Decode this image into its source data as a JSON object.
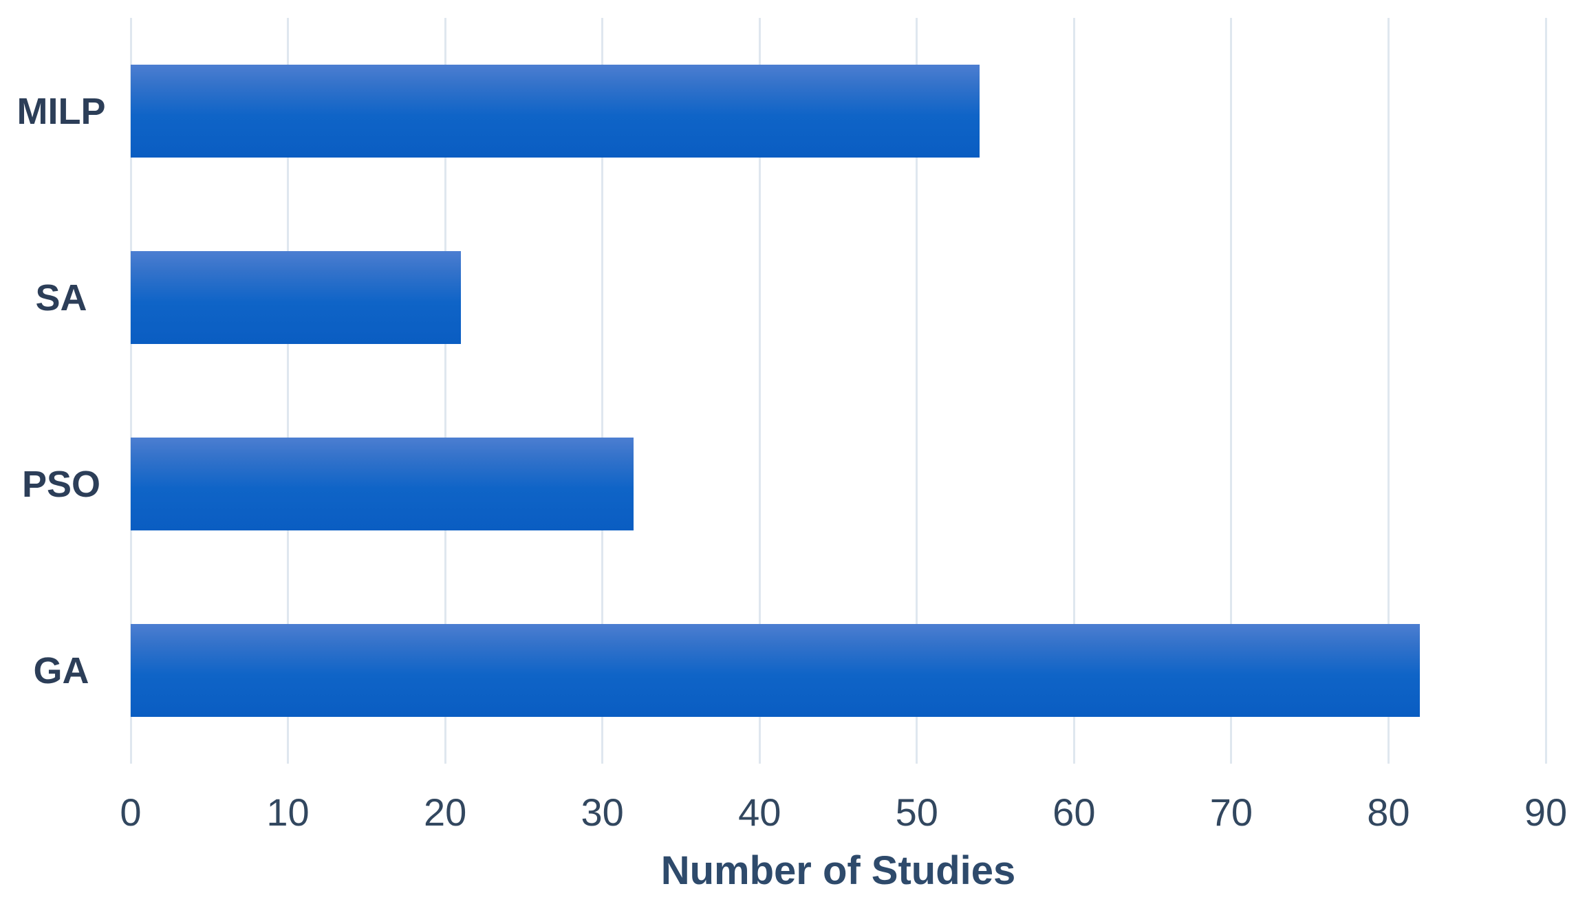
{
  "chart_data": {
    "type": "bar",
    "orientation": "horizontal",
    "categories": [
      "MILP",
      "SA",
      "PSO",
      "GA"
    ],
    "values": [
      54,
      21,
      32,
      82
    ],
    "xlabel": "Number of Studies",
    "ylabel": "",
    "xlim": [
      0,
      90
    ],
    "xticks": [
      0,
      10,
      20,
      30,
      40,
      50,
      60,
      70,
      80,
      90
    ],
    "grid": "vertical-gridlines-on",
    "legend": "none",
    "colors": {
      "bar_gradient_top": "#4c7ed1",
      "bar_gradient_bottom": "#0a5dc2",
      "gridline": "#dfe7ef",
      "category_label": "#2c3e58",
      "tick_label": "#32475f",
      "axis_title": "#2e4a6b",
      "background": "#ffffff"
    }
  }
}
